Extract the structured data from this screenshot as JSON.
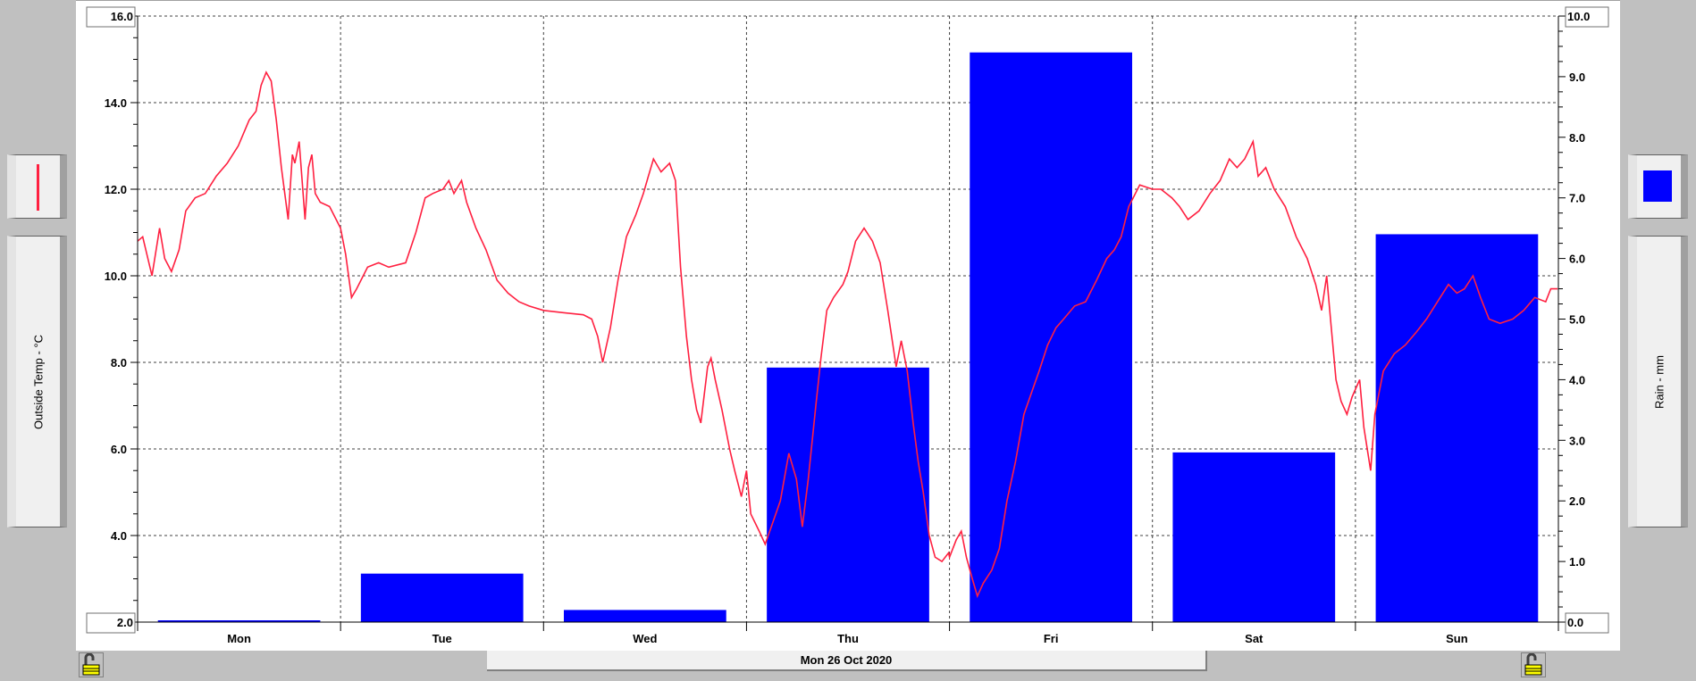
{
  "date_label": "Mon 26 Oct 2020",
  "left_axis_button": {
    "label": "Outside Temp - °C",
    "legend_icon": "red-line-icon"
  },
  "right_axis_button": {
    "label": "Rain - mm",
    "legend_icon": "blue-square-icon"
  },
  "lock_icons": [
    "padlock-open-icon",
    "padlock-open-icon"
  ],
  "colors": {
    "temperature": "#ff2040",
    "rain": "#0000ff",
    "grid": "#404040"
  },
  "chart_data": {
    "type": "bar+line",
    "categories": [
      "Mon",
      "Tue",
      "Wed",
      "Thu",
      "Fri",
      "Sat",
      "Sun"
    ],
    "grid": true,
    "y_left": {
      "label": "Outside Temp - °C",
      "range": [
        2.0,
        16.0
      ],
      "ticks": [
        "2.0",
        "4.0",
        "6.0",
        "8.0",
        "10.0",
        "12.0",
        "14.0",
        "16.0"
      ]
    },
    "y_right": {
      "label": "Rain - mm",
      "range": [
        0.0,
        10.0
      ],
      "ticks": [
        "0.0",
        "1.0",
        "2.0",
        "3.0",
        "4.0",
        "5.0",
        "6.0",
        "7.0",
        "8.0",
        "9.0",
        "10.0"
      ]
    },
    "rain": {
      "type": "bar",
      "axis": "right",
      "values": [
        0.0,
        0.8,
        0.2,
        4.2,
        9.4,
        2.8,
        6.4
      ]
    },
    "temperature": {
      "type": "line",
      "axis": "left",
      "points_by_day": [
        {
          "day": "Mon",
          "points": [
            [
              0,
              10.8
            ],
            [
              0.6,
              10.9
            ],
            [
              1.7,
              10.0
            ],
            [
              2.6,
              11.1
            ],
            [
              3.2,
              10.4
            ],
            [
              4.0,
              10.1
            ],
            [
              4.9,
              10.6
            ],
            [
              5.7,
              11.5
            ],
            [
              6.8,
              11.8
            ],
            [
              8.0,
              11.9
            ],
            [
              9.3,
              12.3
            ],
            [
              10.6,
              12.6
            ],
            [
              11.9,
              13.0
            ],
            [
              13.2,
              13.6
            ],
            [
              14.0,
              13.8
            ],
            [
              14.6,
              14.4
            ],
            [
              15.2,
              14.7
            ],
            [
              15.8,
              14.5
            ],
            [
              16.4,
              13.6
            ],
            [
              17.0,
              12.5
            ],
            [
              17.8,
              11.3
            ],
            [
              18.3,
              12.8
            ],
            [
              18.6,
              12.6
            ],
            [
              19.1,
              13.1
            ],
            [
              19.8,
              11.3
            ],
            [
              20.2,
              12.5
            ],
            [
              20.6,
              12.8
            ],
            [
              21.0,
              11.9
            ],
            [
              21.6,
              11.7
            ],
            [
              22.7,
              11.6
            ]
          ]
        },
        {
          "day": "Tue",
          "points": [
            [
              0,
              11.1
            ],
            [
              0.6,
              10.5
            ],
            [
              1.3,
              9.5
            ],
            [
              1.9,
              9.7
            ],
            [
              3.2,
              10.2
            ],
            [
              4.5,
              10.3
            ],
            [
              5.7,
              10.2
            ],
            [
              7.7,
              10.3
            ],
            [
              8.9,
              11.0
            ],
            [
              10.0,
              11.8
            ],
            [
              10.9,
              11.9
            ],
            [
              12.1,
              12.0
            ],
            [
              12.8,
              12.2
            ],
            [
              13.4,
              11.9
            ],
            [
              14.3,
              12.2
            ],
            [
              14.9,
              11.7
            ],
            [
              16.0,
              11.1
            ],
            [
              17.2,
              10.6
            ],
            [
              18.5,
              9.9
            ],
            [
              19.8,
              9.6
            ],
            [
              21.1,
              9.4
            ],
            [
              22.3,
              9.3
            ]
          ]
        },
        {
          "day": "Wed",
          "points": [
            [
              0,
              9.2
            ],
            [
              2.2,
              9.15
            ],
            [
              4.7,
              9.1
            ],
            [
              5.7,
              9.0
            ],
            [
              6.4,
              8.6
            ],
            [
              7.0,
              8.0
            ],
            [
              7.9,
              8.8
            ],
            [
              8.8,
              9.9
            ],
            [
              9.8,
              10.9
            ],
            [
              10.9,
              11.4
            ],
            [
              11.8,
              11.9
            ],
            [
              12.4,
              12.3
            ],
            [
              13.0,
              12.7
            ],
            [
              13.9,
              12.4
            ],
            [
              14.9,
              12.6
            ],
            [
              15.6,
              12.2
            ],
            [
              16.2,
              10.2
            ],
            [
              16.9,
              8.6
            ],
            [
              17.5,
              7.6
            ],
            [
              18.1,
              6.9
            ],
            [
              18.6,
              6.6
            ],
            [
              19.4,
              7.9
            ],
            [
              19.8,
              8.1
            ],
            [
              20.3,
              7.6
            ],
            [
              21.1,
              6.9
            ],
            [
              22.0,
              6.0
            ],
            [
              22.6,
              5.5
            ],
            [
              23.4,
              4.9
            ]
          ]
        },
        {
          "day": "Thu",
          "points": [
            [
              0,
              5.5
            ],
            [
              0.5,
              4.5
            ],
            [
              1.5,
              4.1
            ],
            [
              2.2,
              3.8
            ],
            [
              3.1,
              4.3
            ],
            [
              4.0,
              4.8
            ],
            [
              5.0,
              5.9
            ],
            [
              5.9,
              5.3
            ],
            [
              6.6,
              4.2
            ],
            [
              7.3,
              5.3
            ],
            [
              8.2,
              7.0
            ],
            [
              8.8,
              8.1
            ],
            [
              9.5,
              9.2
            ],
            [
              10.3,
              9.5
            ],
            [
              11.4,
              9.8
            ],
            [
              12.0,
              10.1
            ],
            [
              12.9,
              10.8
            ],
            [
              13.9,
              11.1
            ],
            [
              14.9,
              10.8
            ],
            [
              15.8,
              10.3
            ],
            [
              16.7,
              9.2
            ],
            [
              17.7,
              7.9
            ],
            [
              18.3,
              8.5
            ],
            [
              19.0,
              7.8
            ],
            [
              19.7,
              6.6
            ],
            [
              20.3,
              5.7
            ],
            [
              20.9,
              5.0
            ],
            [
              21.6,
              4.0
            ],
            [
              22.3,
              3.5
            ],
            [
              23.1,
              3.4
            ],
            [
              23.9,
              3.6
            ]
          ]
        },
        {
          "day": "Fri",
          "points": [
            [
              0,
              3.5
            ],
            [
              0.8,
              3.9
            ],
            [
              1.4,
              4.1
            ],
            [
              2.0,
              3.5
            ],
            [
              2.7,
              3.0
            ],
            [
              3.3,
              2.6
            ],
            [
              4.0,
              2.9
            ],
            [
              5.0,
              3.2
            ],
            [
              5.9,
              3.7
            ],
            [
              6.8,
              4.8
            ],
            [
              7.8,
              5.7
            ],
            [
              8.8,
              6.8
            ],
            [
              9.7,
              7.3
            ],
            [
              10.6,
              7.8
            ],
            [
              11.6,
              8.4
            ],
            [
              12.6,
              8.8
            ],
            [
              13.5,
              9.0
            ],
            [
              14.8,
              9.3
            ],
            [
              16.1,
              9.4
            ],
            [
              17.4,
              9.9
            ],
            [
              18.6,
              10.4
            ],
            [
              19.5,
              10.6
            ],
            [
              20.3,
              10.9
            ],
            [
              21.2,
              11.6
            ],
            [
              22.5,
              12.1
            ]
          ]
        },
        {
          "day": "Sat",
          "points": [
            [
              0,
              12.0
            ],
            [
              1.0,
              12.0
            ],
            [
              2.3,
              11.8
            ],
            [
              3.2,
              11.6
            ],
            [
              4.2,
              11.3
            ],
            [
              5.5,
              11.5
            ],
            [
              6.8,
              11.9
            ],
            [
              8.0,
              12.2
            ],
            [
              9.1,
              12.7
            ],
            [
              10.0,
              12.5
            ],
            [
              10.9,
              12.7
            ],
            [
              11.9,
              13.1
            ],
            [
              12.5,
              12.3
            ],
            [
              13.4,
              12.5
            ],
            [
              14.4,
              12.0
            ],
            [
              15.7,
              11.6
            ],
            [
              17.0,
              10.9
            ],
            [
              18.3,
              10.4
            ],
            [
              19.3,
              9.8
            ],
            [
              20.0,
              9.2
            ],
            [
              20.6,
              10.0
            ],
            [
              21.1,
              8.9
            ],
            [
              21.7,
              7.6
            ],
            [
              22.3,
              7.1
            ],
            [
              23.0,
              6.8
            ],
            [
              23.6,
              7.2
            ]
          ]
        },
        {
          "day": "Sun",
          "points": [
            [
              0.5,
              7.6
            ],
            [
              1.0,
              6.5
            ],
            [
              1.8,
              5.5
            ],
            [
              2.3,
              6.8
            ],
            [
              3.3,
              7.8
            ],
            [
              4.6,
              8.2
            ],
            [
              5.9,
              8.4
            ],
            [
              7.2,
              8.7
            ],
            [
              8.4,
              9.0
            ],
            [
              9.7,
              9.4
            ],
            [
              11.0,
              9.8
            ],
            [
              12.0,
              9.6
            ],
            [
              12.9,
              9.7
            ],
            [
              13.9,
              10.0
            ],
            [
              14.8,
              9.5
            ],
            [
              15.8,
              9.0
            ],
            [
              17.1,
              8.9
            ],
            [
              18.6,
              9.0
            ],
            [
              19.9,
              9.2
            ],
            [
              21.2,
              9.5
            ],
            [
              22.5,
              9.4
            ],
            [
              23.1,
              9.7
            ],
            [
              23.9,
              9.7
            ]
          ]
        }
      ]
    }
  }
}
